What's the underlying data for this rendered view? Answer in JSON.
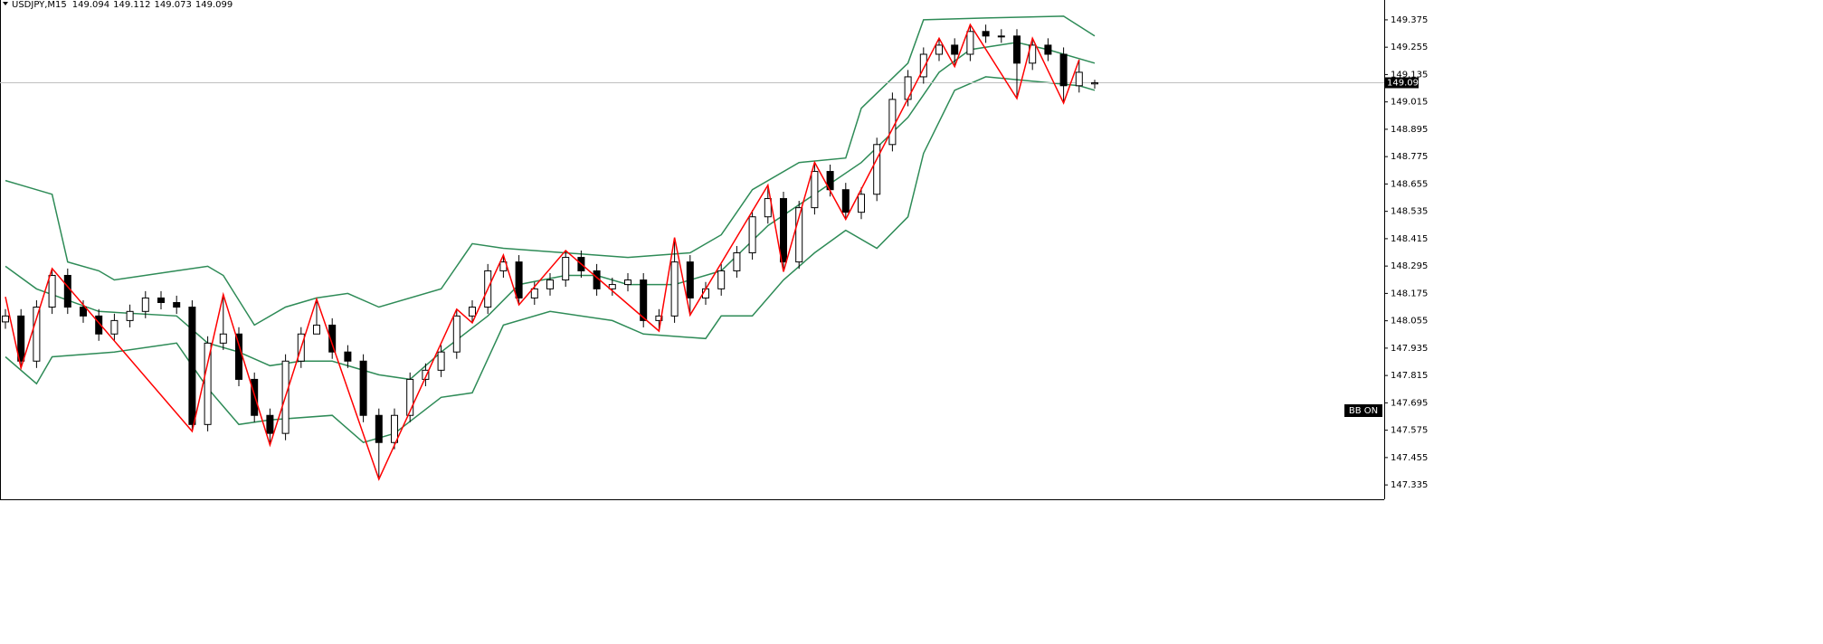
{
  "chart_data": {
    "type": "candlestick",
    "title": "USDJPY,M15",
    "ylim": [
      147.272,
      149.462
    ],
    "yticks": [
      149.375,
      149.255,
      149.135,
      149.015,
      148.895,
      148.775,
      148.655,
      148.535,
      148.415,
      148.295,
      148.175,
      148.055,
      147.935,
      147.815,
      147.695,
      147.575,
      147.455,
      147.335
    ],
    "up_color": "#ffffff",
    "down_color": "#000000",
    "candles": {
      "open": [
        148.05,
        148.076,
        147.878,
        148.115,
        148.254,
        148.115,
        148.076,
        147.997,
        148.056,
        148.096,
        148.155,
        148.135,
        148.115,
        147.6,
        147.957,
        147.997,
        147.798,
        147.64,
        147.561,
        147.878,
        147.997,
        148.036,
        147.918,
        147.878,
        147.64,
        147.521,
        147.64,
        147.798,
        147.838,
        147.918,
        148.076,
        148.115,
        148.274,
        148.313,
        148.155,
        148.195,
        148.234,
        148.333,
        148.274,
        148.195,
        148.214,
        148.234,
        148.056,
        148.076,
        148.313,
        148.155,
        148.195,
        148.274,
        148.353,
        148.511,
        148.591,
        148.313,
        148.551,
        148.71,
        148.63,
        148.531,
        148.61,
        148.828,
        149.026,
        149.125,
        149.224,
        149.264,
        149.224,
        149.324,
        149.304,
        149.304,
        149.185,
        149.264,
        149.224,
        149.086,
        149.094
      ],
      "high": [
        148.106,
        148.106,
        148.145,
        148.284,
        148.284,
        148.145,
        148.106,
        148.086,
        148.126,
        148.185,
        148.185,
        148.165,
        148.145,
        147.987,
        148.17,
        148.027,
        147.828,
        147.67,
        147.908,
        148.027,
        148.15,
        148.066,
        147.948,
        147.908,
        147.67,
        147.67,
        147.828,
        147.868,
        147.948,
        148.106,
        148.145,
        148.304,
        148.343,
        148.343,
        148.225,
        148.264,
        148.363,
        148.363,
        148.304,
        148.244,
        148.264,
        148.264,
        148.106,
        148.42,
        148.343,
        148.225,
        148.304,
        148.383,
        148.541,
        148.65,
        148.621,
        148.581,
        148.75,
        148.74,
        148.66,
        148.64,
        148.858,
        149.056,
        149.155,
        149.254,
        149.294,
        149.294,
        149.354,
        149.354,
        149.334,
        149.334,
        149.294,
        149.294,
        149.254,
        149.2,
        149.112
      ],
      "low": [
        148.02,
        147.848,
        147.848,
        148.085,
        148.085,
        148.046,
        147.967,
        147.967,
        148.026,
        148.066,
        148.105,
        148.085,
        147.57,
        147.57,
        147.927,
        147.768,
        147.61,
        147.51,
        147.531,
        147.848,
        148.006,
        147.888,
        147.848,
        147.61,
        147.36,
        147.491,
        147.61,
        147.768,
        147.808,
        147.888,
        148.046,
        148.085,
        148.244,
        148.125,
        148.125,
        148.165,
        148.204,
        148.244,
        148.165,
        148.165,
        148.184,
        148.026,
        148.01,
        148.046,
        148.08,
        148.125,
        148.165,
        148.244,
        148.323,
        148.481,
        148.27,
        148.283,
        148.521,
        148.6,
        148.5,
        148.501,
        148.58,
        148.798,
        148.996,
        149.095,
        149.194,
        149.17,
        149.194,
        149.274,
        149.274,
        149.03,
        149.155,
        149.194,
        149.01,
        149.056,
        149.073
      ],
      "close": [
        148.076,
        147.878,
        148.115,
        148.254,
        148.115,
        148.076,
        147.997,
        148.056,
        148.096,
        148.155,
        148.135,
        148.115,
        147.6,
        147.957,
        147.997,
        147.798,
        147.64,
        147.561,
        147.878,
        147.997,
        148.036,
        147.918,
        147.878,
        147.64,
        147.521,
        147.64,
        147.798,
        147.838,
        147.918,
        148.076,
        148.115,
        148.274,
        148.313,
        148.155,
        148.195,
        148.234,
        148.333,
        148.274,
        148.195,
        148.214,
        148.234,
        148.056,
        148.076,
        148.313,
        148.155,
        148.195,
        148.274,
        148.353,
        148.511,
        148.591,
        148.313,
        148.551,
        148.71,
        148.63,
        148.531,
        148.61,
        148.828,
        149.026,
        149.125,
        149.224,
        149.264,
        149.224,
        149.324,
        149.304,
        149.304,
        149.185,
        149.264,
        149.224,
        149.086,
        149.145,
        149.099
      ]
    },
    "bands": [
      {
        "color": "#2e8b57",
        "x": [
          0,
          1,
          3,
          4,
          6,
          7,
          11,
          13,
          14,
          16,
          18,
          20,
          22,
          24,
          28,
          30,
          32,
          40,
          44,
          46,
          48,
          51,
          54,
          55,
          58,
          59,
          63,
          68,
          70
        ],
        "values": [
          148.67,
          148.65,
          148.61,
          148.313,
          148.274,
          148.234,
          148.274,
          148.294,
          148.254,
          148.036,
          148.115,
          148.155,
          148.175,
          148.115,
          148.195,
          148.393,
          148.373,
          148.333,
          148.353,
          148.432,
          148.63,
          148.749,
          148.769,
          148.987,
          149.185,
          149.375,
          149.383,
          149.391,
          149.304
        ]
      },
      {
        "color": "#2e8b57",
        "x": [
          0,
          2,
          6,
          11,
          13,
          15,
          17,
          19,
          21,
          24,
          26,
          28,
          31,
          33,
          36,
          38,
          40,
          43,
          46,
          49,
          52,
          55,
          58,
          60,
          62,
          65,
          67,
          70
        ],
        "values": [
          148.294,
          148.195,
          148.096,
          148.076,
          147.957,
          147.918,
          147.858,
          147.878,
          147.878,
          147.818,
          147.798,
          147.918,
          148.076,
          148.214,
          148.254,
          148.254,
          148.214,
          148.214,
          148.274,
          148.472,
          148.61,
          148.749,
          148.947,
          149.145,
          149.244,
          149.276,
          149.244,
          149.185
        ]
      },
      {
        "color": "#2e8b57",
        "x": [
          0,
          2,
          3,
          7,
          11,
          13,
          15,
          17,
          21,
          23,
          25,
          28,
          30,
          32,
          35,
          39,
          41,
          45,
          46,
          48,
          50,
          52,
          54,
          56,
          58,
          59,
          61,
          63,
          66,
          69,
          70
        ],
        "values": [
          147.897,
          147.779,
          147.897,
          147.918,
          147.957,
          147.759,
          147.6,
          147.62,
          147.64,
          147.521,
          147.561,
          147.719,
          147.739,
          148.036,
          148.096,
          148.056,
          147.997,
          147.977,
          148.076,
          148.076,
          148.234,
          148.353,
          148.452,
          148.373,
          148.511,
          148.789,
          149.066,
          149.125,
          149.106,
          149.086,
          149.066
        ]
      }
    ],
    "zigzag": {
      "color": "#ff0000",
      "x": [
        0,
        1,
        3,
        12,
        14,
        17,
        20,
        24,
        29,
        30,
        32,
        33,
        36,
        42,
        43,
        44,
        49,
        50,
        52,
        54,
        60,
        61,
        62,
        65,
        66,
        68,
        69
      ],
      "values": [
        148.16,
        147.848,
        148.284,
        147.57,
        148.17,
        147.51,
        148.15,
        147.36,
        148.106,
        148.046,
        148.343,
        148.125,
        148.363,
        148.01,
        148.42,
        148.08,
        148.65,
        148.27,
        148.75,
        148.5,
        149.294,
        149.17,
        149.354,
        149.03,
        149.294,
        149.01,
        149.2
      ]
    },
    "indicator_label": "BB ON"
  }
}
